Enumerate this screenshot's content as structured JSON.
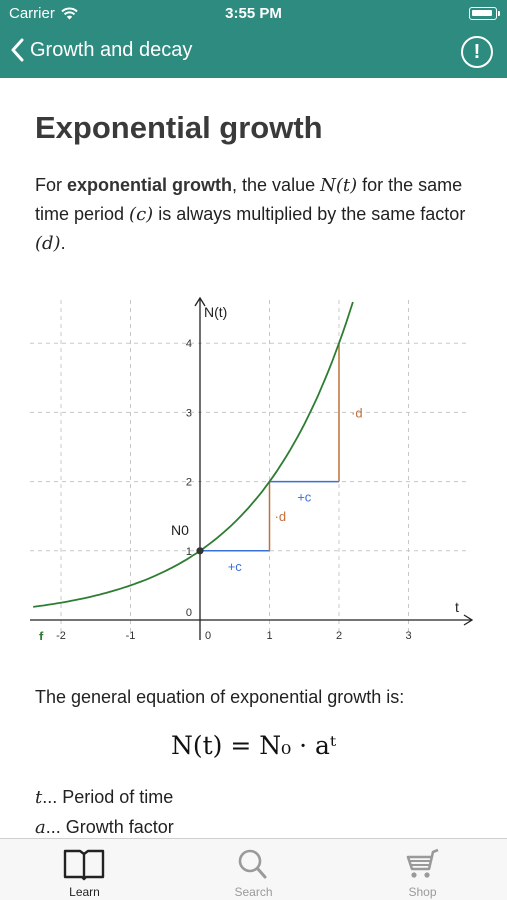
{
  "status": {
    "carrier": "Carrier",
    "time": "3:55 PM"
  },
  "nav": {
    "back_title": "Growth and decay",
    "info_symbol": "!"
  },
  "page": {
    "title": "Exponential growth",
    "intro_1": "For ",
    "intro_bold": "exponential growth",
    "intro_2": ", the value ",
    "intro_math_N": "N(t)",
    "intro_3": " for the same time period ",
    "intro_math_c": "(c)",
    "intro_4": " is always multiplied by the same factor ",
    "intro_math_d": "(d)",
    "intro_5": ".",
    "equation_intro": "The general equation of exponential growth is:",
    "equation": "N(t) = N₀ · aᵗ",
    "definitions": [
      {
        "var": "t",
        "text": "... Period of time"
      },
      {
        "var": "a",
        "text": "... Growth factor"
      }
    ]
  },
  "chart_data": {
    "type": "line",
    "function": "N(t) = 2^t",
    "x_axis_label": "t",
    "y_axis_label": "N(t)",
    "x_ticks": [
      "-2",
      "-1",
      "0",
      "1",
      "2",
      "3"
    ],
    "y_ticks": [
      "0",
      "1",
      "2",
      "3",
      "4"
    ],
    "xlim": [
      -2.4,
      3.9
    ],
    "ylim": [
      -0.2,
      4.5
    ],
    "grid": true,
    "curve_label": "f",
    "initial_value_label": "N0",
    "initial_point": [
      0,
      1
    ],
    "step_labels": {
      "c": "+c",
      "d": "·d"
    },
    "steps": [
      {
        "from": [
          0,
          1
        ],
        "to": [
          1,
          2
        ]
      },
      {
        "from": [
          1,
          2
        ],
        "to": [
          2,
          4
        ]
      }
    ],
    "colors": {
      "curve": "#2e7d32",
      "step_c": "#3a6fd8",
      "step_d": "#c0703a",
      "grid": "#c8c8c8"
    }
  },
  "tabs": [
    {
      "label": "Learn",
      "icon": "book-icon",
      "active": true
    },
    {
      "label": "Search",
      "icon": "search-icon",
      "active": false
    },
    {
      "label": "Shop",
      "icon": "cart-icon",
      "active": false
    }
  ]
}
